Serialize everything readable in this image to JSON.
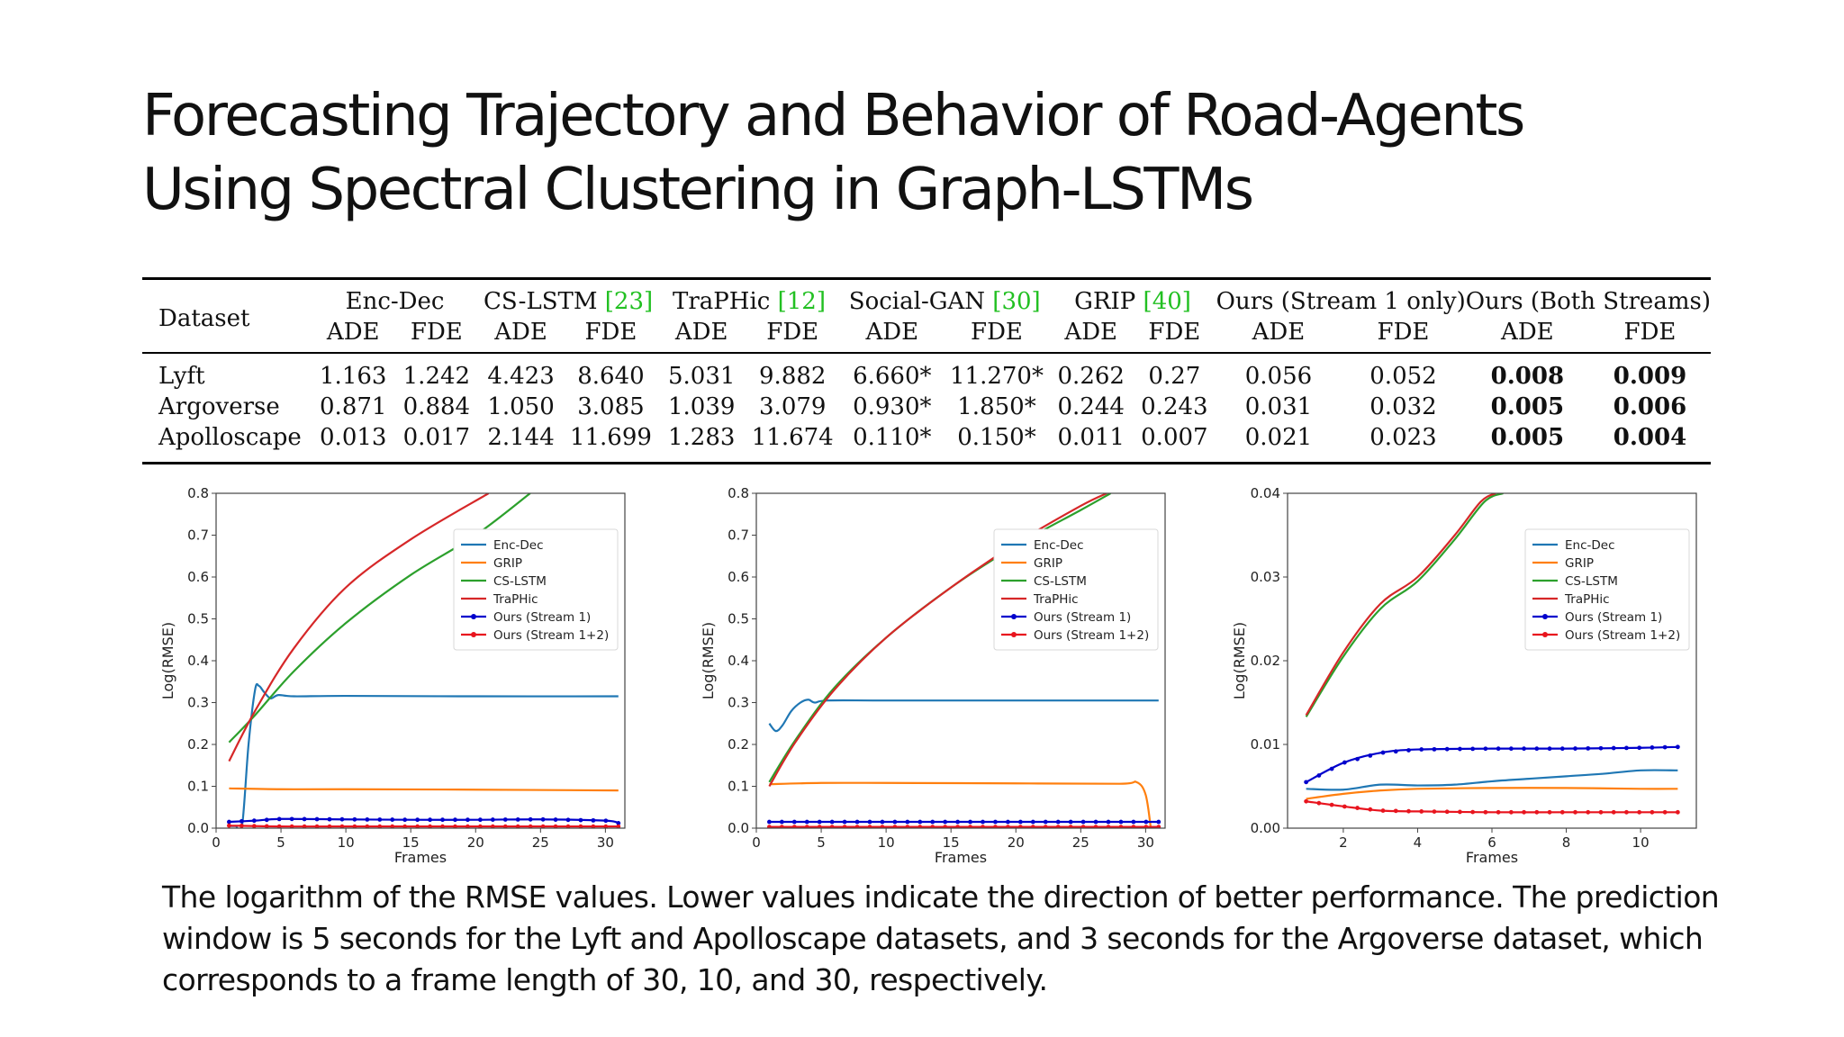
{
  "title": {
    "line1": "Forecasting Trajectory and Behavior of Road-Agents",
    "line2": "Using Spectral Clustering in Graph-LSTMs"
  },
  "table": {
    "dataset_header": "Dataset",
    "groups": [
      {
        "name": "Enc-Dec",
        "ref": ""
      },
      {
        "name": "CS-LSTM ",
        "ref": "[23]"
      },
      {
        "name": "TraPHic ",
        "ref": "[12]"
      },
      {
        "name": "Social-GAN ",
        "ref": "[30]"
      },
      {
        "name": "GRIP ",
        "ref": "[40]"
      },
      {
        "name": "Ours (Stream 1 only)",
        "ref": ""
      },
      {
        "name": "Ours (Both Streams)",
        "ref": ""
      }
    ],
    "sub_ade": "ADE",
    "sub_fde": "FDE",
    "rows": [
      {
        "name": "Lyft",
        "values": [
          "1.163",
          "1.242",
          "4.423",
          "8.640",
          "5.031",
          "9.882",
          "6.660*",
          "11.270*",
          "0.262",
          "0.27",
          "0.056",
          "0.052",
          "0.008",
          "0.009"
        ]
      },
      {
        "name": "Argoverse",
        "values": [
          "0.871",
          "0.884",
          "1.050",
          "3.085",
          "1.039",
          "3.079",
          "0.930*",
          "1.850*",
          "0.244",
          "0.243",
          "0.031",
          "0.032",
          "0.005",
          "0.006"
        ]
      },
      {
        "name": "Apolloscape",
        "values": [
          "0.013",
          "0.017",
          "2.144",
          "11.699",
          "1.283",
          "11.674",
          "0.110*",
          "0.150*",
          "0.011",
          "0.007",
          "0.021",
          "0.023",
          "0.005",
          "0.004"
        ]
      }
    ]
  },
  "chart_data": [
    {
      "type": "line",
      "xlabel": "Frames",
      "ylabel": "Log(RMSE)",
      "xlim": [
        0,
        31.5
      ],
      "ylim": [
        0,
        0.8
      ],
      "xticks": [
        0,
        5,
        10,
        15,
        20,
        25,
        30
      ],
      "yticks": [
        0.0,
        0.1,
        0.2,
        0.3,
        0.4,
        0.5,
        0.6,
        0.7,
        0.8
      ],
      "ytick_labels": [
        "0.0",
        "0.1",
        "0.2",
        "0.3",
        "0.4",
        "0.5",
        "0.6",
        "0.7",
        "0.8"
      ],
      "legend": "upper-right",
      "series": [
        {
          "name": "Enc-Dec",
          "color": "#1f77b4",
          "marker": false,
          "points": [
            [
              1,
              0.005
            ],
            [
              1.5,
              0.005
            ],
            [
              2,
              0.005
            ],
            [
              2.5,
              0.2
            ],
            [
              3,
              0.33
            ],
            [
              3.3,
              0.34
            ],
            [
              3.7,
              0.325
            ],
            [
              4.2,
              0.31
            ],
            [
              4.8,
              0.318
            ],
            [
              6,
              0.315
            ],
            [
              10,
              0.316
            ],
            [
              20,
              0.315
            ],
            [
              31,
              0.315
            ]
          ]
        },
        {
          "name": "GRIP",
          "color": "#ff7f0e",
          "marker": false,
          "points": [
            [
              1,
              0.095
            ],
            [
              5,
              0.093
            ],
            [
              10,
              0.093
            ],
            [
              20,
              0.092
            ],
            [
              31,
              0.09
            ]
          ]
        },
        {
          "name": "CS-LSTM",
          "color": "#2ca02c",
          "marker": false,
          "points": [
            [
              1,
              0.205
            ],
            [
              3,
              0.27
            ],
            [
              6,
              0.375
            ],
            [
              10,
              0.49
            ],
            [
              15,
              0.605
            ],
            [
              20,
              0.7
            ],
            [
              24.2,
              0.8
            ]
          ]
        },
        {
          "name": "TraPHic",
          "color": "#d62728",
          "marker": false,
          "points": [
            [
              1,
              0.16
            ],
            [
              3,
              0.28
            ],
            [
              6,
              0.43
            ],
            [
              10,
              0.575
            ],
            [
              15,
              0.69
            ],
            [
              21,
              0.8
            ]
          ]
        },
        {
          "name": "Ours (Stream 1)",
          "color": "#0000cc",
          "marker": true,
          "points": [
            [
              1,
              0.015
            ],
            [
              3,
              0.018
            ],
            [
              5,
              0.022
            ],
            [
              10,
              0.021
            ],
            [
              15,
              0.02
            ],
            [
              20,
              0.02
            ],
            [
              25,
              0.021
            ],
            [
              30,
              0.018
            ],
            [
              31,
              0.012
            ]
          ]
        },
        {
          "name": "Ours (Stream 1+2)",
          "color": "#e8141e",
          "marker": true,
          "points": [
            [
              1,
              0.006
            ],
            [
              5,
              0.004
            ],
            [
              10,
              0.004
            ],
            [
              20,
              0.004
            ],
            [
              31,
              0.004
            ]
          ]
        }
      ]
    },
    {
      "type": "line",
      "xlabel": "Frames",
      "ylabel": "Log(RMSE)",
      "xlim": [
        0,
        31.5
      ],
      "ylim": [
        0,
        0.8
      ],
      "xticks": [
        0,
        5,
        10,
        15,
        20,
        25,
        30
      ],
      "yticks": [
        0.0,
        0.1,
        0.2,
        0.3,
        0.4,
        0.5,
        0.6,
        0.7,
        0.8
      ],
      "ytick_labels": [
        "0.0",
        "0.1",
        "0.2",
        "0.3",
        "0.4",
        "0.5",
        "0.6",
        "0.7",
        "0.8"
      ],
      "legend": "upper-right",
      "series": [
        {
          "name": "Enc-Dec",
          "color": "#1f77b4",
          "marker": false,
          "points": [
            [
              1,
              0.25
            ],
            [
              1.5,
              0.232
            ],
            [
              2,
              0.245
            ],
            [
              2.7,
              0.28
            ],
            [
              3.4,
              0.3
            ],
            [
              4,
              0.307
            ],
            [
              4.5,
              0.3
            ],
            [
              5.5,
              0.305
            ],
            [
              10,
              0.305
            ],
            [
              20,
              0.305
            ],
            [
              31,
              0.305
            ]
          ]
        },
        {
          "name": "GRIP",
          "color": "#ff7f0e",
          "marker": false,
          "points": [
            [
              1,
              0.105
            ],
            [
              5,
              0.108
            ],
            [
              10,
              0.108
            ],
            [
              20,
              0.107
            ],
            [
              28,
              0.106
            ],
            [
              29.3,
              0.11
            ],
            [
              30,
              0.08
            ],
            [
              30.4,
              0.0
            ]
          ]
        },
        {
          "name": "CS-LSTM",
          "color": "#2ca02c",
          "marker": false,
          "points": [
            [
              1,
              0.11
            ],
            [
              3,
              0.21
            ],
            [
              6,
              0.335
            ],
            [
              10,
              0.455
            ],
            [
              15,
              0.575
            ],
            [
              20,
              0.675
            ],
            [
              25,
              0.76
            ],
            [
              27.3,
              0.8
            ]
          ]
        },
        {
          "name": "TraPHic",
          "color": "#d62728",
          "marker": false,
          "points": [
            [
              1,
              0.1
            ],
            [
              3,
              0.205
            ],
            [
              6,
              0.33
            ],
            [
              10,
              0.455
            ],
            [
              15,
              0.575
            ],
            [
              20,
              0.68
            ],
            [
              25,
              0.77
            ],
            [
              27,
              0.8
            ]
          ]
        },
        {
          "name": "Ours (Stream 1)",
          "color": "#0000cc",
          "marker": true,
          "points": [
            [
              1,
              0.015
            ],
            [
              10,
              0.015
            ],
            [
              20,
              0.015
            ],
            [
              31,
              0.015
            ]
          ]
        },
        {
          "name": "Ours (Stream 1+2)",
          "color": "#e8141e",
          "marker": true,
          "points": [
            [
              1,
              0.003
            ],
            [
              10,
              0.003
            ],
            [
              20,
              0.003
            ],
            [
              31,
              0.003
            ]
          ]
        }
      ]
    },
    {
      "type": "line",
      "xlabel": "Frames",
      "ylabel": "Log(RMSE)",
      "xlim": [
        0.5,
        11.5
      ],
      "ylim": [
        0,
        0.04
      ],
      "xticks": [
        2,
        4,
        6,
        8,
        10
      ],
      "yticks": [
        0.0,
        0.01,
        0.02,
        0.03,
        0.04
      ],
      "ytick_labels": [
        "0.00",
        "0.01",
        "0.02",
        "0.03",
        "0.04"
      ],
      "legend": "upper-right",
      "series": [
        {
          "name": "Enc-Dec",
          "color": "#1f77b4",
          "marker": false,
          "points": [
            [
              1,
              0.0047
            ],
            [
              2,
              0.0046
            ],
            [
              3,
              0.0052
            ],
            [
              4,
              0.0051
            ],
            [
              5,
              0.0052
            ],
            [
              6,
              0.0056
            ],
            [
              7,
              0.0059
            ],
            [
              8,
              0.0062
            ],
            [
              9,
              0.0065
            ],
            [
              10,
              0.0069
            ],
            [
              11,
              0.0069
            ]
          ]
        },
        {
          "name": "GRIP",
          "color": "#ff7f0e",
          "marker": false,
          "points": [
            [
              1,
              0.0035
            ],
            [
              2,
              0.0041
            ],
            [
              3,
              0.0045
            ],
            [
              4,
              0.0047
            ],
            [
              6,
              0.0048
            ],
            [
              8,
              0.0048
            ],
            [
              10,
              0.0047
            ],
            [
              11,
              0.0047
            ]
          ]
        },
        {
          "name": "CS-LSTM",
          "color": "#2ca02c",
          "marker": false,
          "points": [
            [
              1,
              0.0133
            ],
            [
              2,
              0.0205
            ],
            [
              3,
              0.0262
            ],
            [
              4,
              0.0295
            ],
            [
              5,
              0.0345
            ],
            [
              5.8,
              0.039
            ],
            [
              6.3,
              0.04
            ]
          ]
        },
        {
          "name": "TraPHic",
          "color": "#d62728",
          "marker": false,
          "points": [
            [
              1,
              0.0135
            ],
            [
              2,
              0.021
            ],
            [
              3,
              0.0268
            ],
            [
              4,
              0.03
            ],
            [
              5,
              0.035
            ],
            [
              5.7,
              0.039
            ],
            [
              6.1,
              0.04
            ]
          ]
        },
        {
          "name": "Ours (Stream 1)",
          "color": "#0000cc",
          "marker": true,
          "points": [
            [
              1,
              0.0055
            ],
            [
              2,
              0.0078
            ],
            [
              3,
              0.009
            ],
            [
              4,
              0.0094
            ],
            [
              6,
              0.0095
            ],
            [
              8,
              0.0095
            ],
            [
              10,
              0.0096
            ],
            [
              11,
              0.0097
            ]
          ]
        },
        {
          "name": "Ours (Stream 1+2)",
          "color": "#e8141e",
          "marker": true,
          "points": [
            [
              1,
              0.0032
            ],
            [
              2,
              0.0026
            ],
            [
              3,
              0.0021
            ],
            [
              4,
              0.002
            ],
            [
              6,
              0.0019
            ],
            [
              8,
              0.0019
            ],
            [
              10,
              0.0019
            ],
            [
              11,
              0.0019
            ]
          ]
        }
      ]
    }
  ],
  "caption": "The logarithm of the RMSE values. Lower values indicate the direction of better performance. The prediction window is 5 seconds for the Lyft and Apolloscape datasets, and 3 seconds for the Argoverse dataset, which corresponds to a frame length of 30, 10, and 30, respectively."
}
